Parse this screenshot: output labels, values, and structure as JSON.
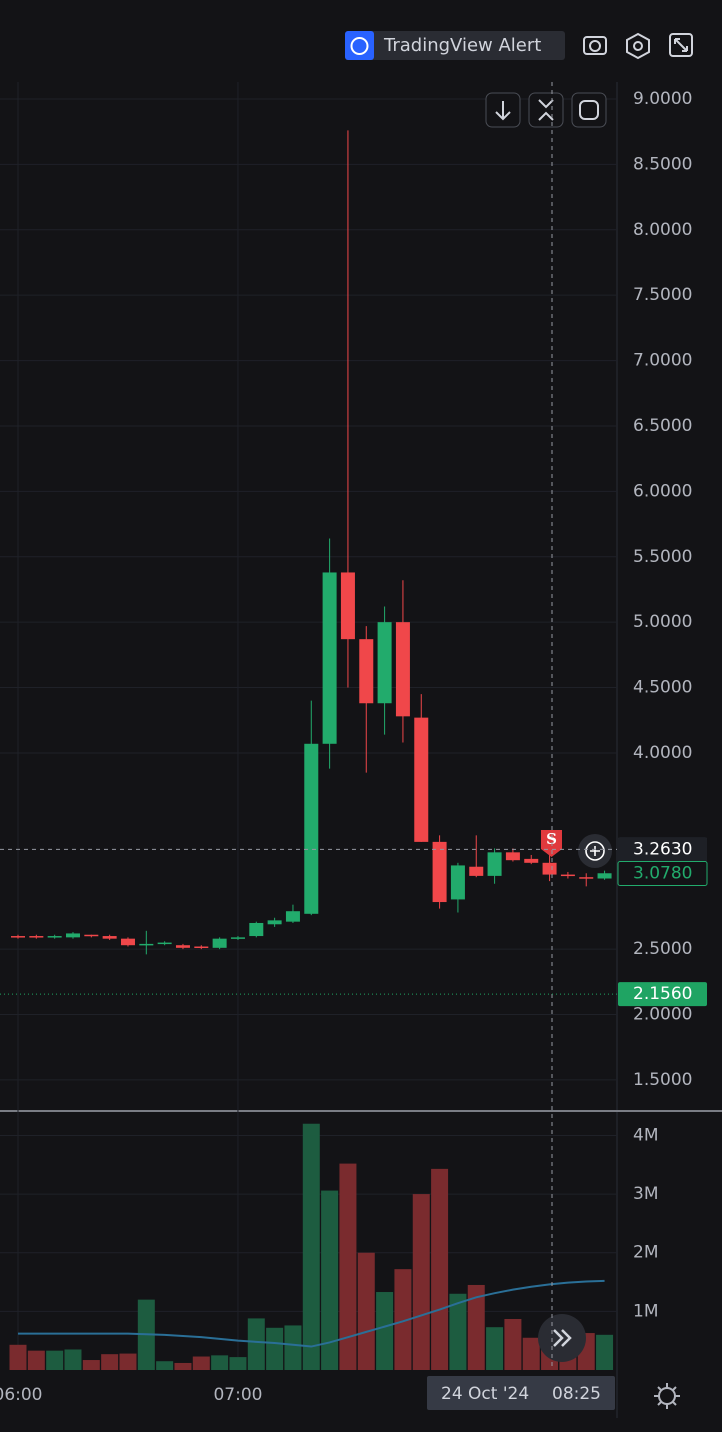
{
  "toolbar": {
    "alert_button": "TradingView Alert"
  },
  "crosshair": {
    "date": "24 Oct '24",
    "time": "08:25"
  },
  "signal_label": "S",
  "chart_data": {
    "type": "candlestick",
    "categories": [
      "06:00",
      null,
      null,
      null,
      null,
      null,
      null,
      null,
      null,
      null,
      null,
      null,
      "07:00",
      null,
      null,
      null,
      null,
      null,
      null,
      null,
      null,
      null,
      null,
      null,
      null,
      null,
      null,
      null,
      null,
      null,
      null,
      null,
      null
    ],
    "series": [
      {
        "name": "open",
        "values": [
          2.6,
          2.6,
          2.59,
          2.59,
          2.61,
          2.6,
          2.58,
          2.54,
          2.54,
          2.53,
          2.52,
          2.51,
          2.58,
          2.6,
          2.69,
          2.71,
          2.77,
          4.07,
          5.38,
          4.87,
          4.38,
          5.0,
          4.27,
          3.32,
          2.88,
          3.13,
          3.06,
          3.24,
          3.19,
          3.16,
          3.07,
          3.05,
          3.04
        ]
      },
      {
        "name": "high",
        "values": [
          2.61,
          2.61,
          2.61,
          2.63,
          2.61,
          2.61,
          2.59,
          2.64,
          2.56,
          2.54,
          2.53,
          2.59,
          2.6,
          2.71,
          2.74,
          2.84,
          4.4,
          5.64,
          8.76,
          4.97,
          5.12,
          5.32,
          4.45,
          3.37,
          3.16,
          3.37,
          3.27,
          3.27,
          3.22,
          3.22,
          3.09,
          3.08,
          3.1
        ]
      },
      {
        "name": "low",
        "values": [
          2.58,
          2.58,
          2.58,
          2.58,
          2.59,
          2.57,
          2.52,
          2.46,
          2.53,
          2.5,
          2.5,
          2.5,
          2.57,
          2.59,
          2.67,
          2.7,
          2.76,
          3.88,
          4.5,
          3.85,
          4.14,
          4.08,
          3.32,
          2.81,
          2.78,
          3.05,
          3.0,
          3.17,
          3.15,
          3.02,
          3.04,
          2.98,
          3.03
        ]
      },
      {
        "name": "close",
        "values": [
          2.59,
          2.59,
          2.6,
          2.62,
          2.6,
          2.58,
          2.53,
          2.54,
          2.55,
          2.51,
          2.51,
          2.58,
          2.59,
          2.7,
          2.72,
          2.79,
          4.07,
          5.38,
          4.87,
          4.38,
          5.0,
          4.28,
          3.32,
          2.86,
          3.14,
          3.06,
          3.24,
          3.18,
          3.16,
          3.07,
          3.06,
          3.04,
          3.08
        ]
      },
      {
        "name": "volume",
        "values": [
          430000,
          330000,
          330000,
          350000,
          170000,
          270000,
          280000,
          1200000,
          150000,
          120000,
          230000,
          250000,
          220000,
          880000,
          720000,
          760000,
          4200000,
          3060000,
          3520000,
          2000000,
          1330000,
          1720000,
          3000000,
          3430000,
          1300000,
          1450000,
          730000,
          870000,
          550000,
          720000,
          450000,
          630000,
          600000
        ]
      },
      {
        "name": "volume_ma",
        "color": "#2a6f97",
        "values": [
          620000,
          620000,
          620000,
          620000,
          620000,
          620000,
          620000,
          610000,
          600000,
          580000,
          560000,
          530000,
          500000,
          480000,
          460000,
          430000,
          400000,
          470000,
          560000,
          650000,
          740000,
          830000,
          930000,
          1030000,
          1140000,
          1240000,
          1310000,
          1370000,
          1420000,
          1460000,
          1490000,
          1510000,
          1520000
        ]
      }
    ],
    "up_color": "#22ab6c",
    "down_color": "#f0474a",
    "volume_up_color": "#1d5c40",
    "volume_down_color": "#7a2b2e",
    "ylim": [
      1.27,
      9.13
    ],
    "yticks": [
      {
        "value": 1.5,
        "label": "1.5000"
      },
      {
        "value": 2,
        "label": "2.0000"
      },
      {
        "value": 2.5,
        "label": "2.5000"
      },
      {
        "value": 4,
        "label": "4.0000"
      },
      {
        "value": 4.5,
        "label": "4.5000"
      },
      {
        "value": 5,
        "label": "5.0000"
      },
      {
        "value": 5.5,
        "label": "5.5000"
      },
      {
        "value": 6,
        "label": "6.0000"
      },
      {
        "value": 6.5,
        "label": "6.5000"
      },
      {
        "value": 7,
        "label": "7.0000"
      },
      {
        "value": 7.5,
        "label": "7.5000"
      },
      {
        "value": 8,
        "label": "8.0000"
      },
      {
        "value": 8.5,
        "label": "8.5000"
      },
      {
        "value": 9,
        "label": "9.0000"
      }
    ],
    "volume_lim": [
      0,
      4400000
    ],
    "volume_ticks": [
      {
        "value": 1000000,
        "label": "1M"
      },
      {
        "value": 2000000,
        "label": "2M"
      },
      {
        "value": 3000000,
        "label": "3M"
      },
      {
        "value": 4000000,
        "label": "4M"
      }
    ],
    "price_labels": [
      {
        "value": 3.2628,
        "label": "3.2628",
        "color": "#363a45"
      },
      {
        "value": 3.263,
        "label": "3.2630",
        "color": "#1e2026"
      },
      {
        "value": 3.078,
        "label": "3.0780",
        "color": "#22ab6c"
      },
      {
        "value": 2.156,
        "label": "2.1560",
        "color": "#1fa463"
      }
    ],
    "grid": true
  }
}
